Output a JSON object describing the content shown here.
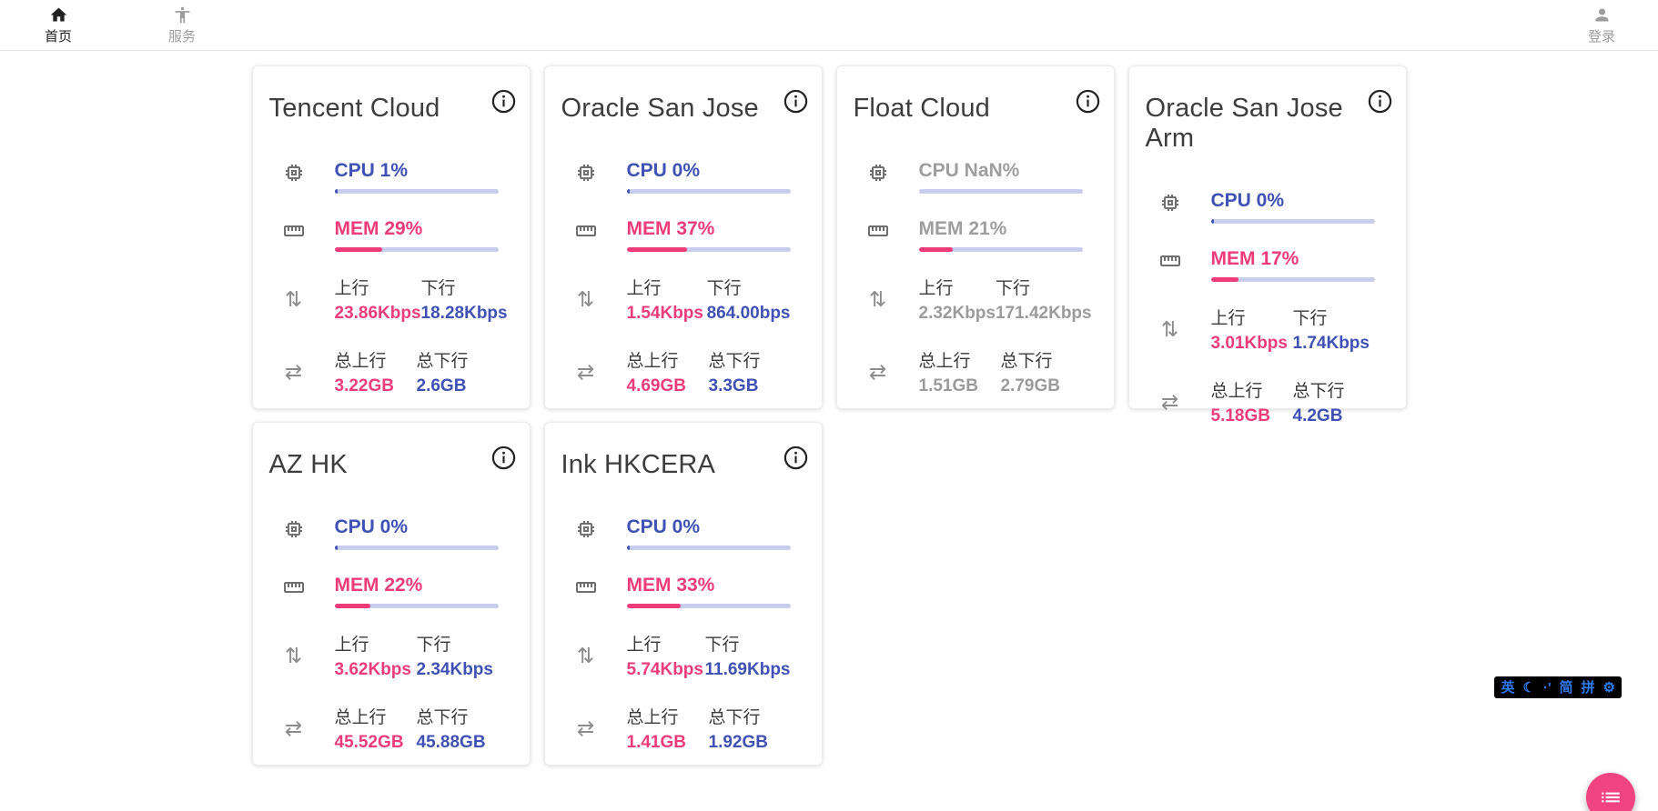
{
  "nav": {
    "home": {
      "label": "首页"
    },
    "services": {
      "label": "服务"
    },
    "login": {
      "label": "登录"
    }
  },
  "stat_labels": {
    "up": "上行",
    "down": "下行",
    "total_up": "总上行",
    "total_down": "总下行"
  },
  "servers": [
    {
      "name": "Tencent Cloud",
      "cpu_text": "CPU 1%",
      "cpu_pct": 1,
      "mem_text": "MEM 29%",
      "mem_pct": 29,
      "up": "23.86Kbps",
      "down": "18.28Kbps",
      "total_up": "3.22GB",
      "total_down": "2.6GB",
      "offline": false
    },
    {
      "name": "Oracle San Jose",
      "cpu_text": "CPU 0%",
      "cpu_pct": 0,
      "mem_text": "MEM 37%",
      "mem_pct": 37,
      "up": "1.54Kbps",
      "down": "864.00bps",
      "total_up": "4.69GB",
      "total_down": "3.3GB",
      "offline": false
    },
    {
      "name": "Float Cloud",
      "cpu_text": "CPU NaN%",
      "cpu_pct": 0,
      "mem_text": "MEM 21%",
      "mem_pct": 21,
      "up": "2.32Kbps",
      "down": "171.42Kbps",
      "total_up": "1.51GB",
      "total_down": "2.79GB",
      "offline": true
    },
    {
      "name": "Oracle San Jose Arm",
      "cpu_text": "CPU 0%",
      "cpu_pct": 0,
      "mem_text": "MEM 17%",
      "mem_pct": 17,
      "up": "3.01Kbps",
      "down": "1.74Kbps",
      "total_up": "5.18GB",
      "total_down": "4.2GB",
      "offline": false
    },
    {
      "name": "AZ HK",
      "cpu_text": "CPU 0%",
      "cpu_pct": 0,
      "mem_text": "MEM 22%",
      "mem_pct": 22,
      "up": "3.62Kbps",
      "down": "2.34Kbps",
      "total_up": "45.52GB",
      "total_down": "45.88GB",
      "offline": false
    },
    {
      "name": "Ink HKCERA",
      "cpu_text": "CPU 0%",
      "cpu_pct": 0,
      "mem_text": "MEM 33%",
      "mem_pct": 33,
      "up": "5.74Kbps",
      "down": "11.69Kbps",
      "total_up": "1.41GB",
      "total_down": "1.92GB",
      "offline": false
    }
  ],
  "ime": {
    "lang": "英",
    "moon_icon": "☾",
    "punct": "·'",
    "simplified": "简",
    "pinyin": "拼",
    "gear_icon": "⚙"
  },
  "colors": {
    "cpu_blue": "#3f51b5",
    "mem_pink": "#ee3c78",
    "track": "#c9cdec",
    "muted": "#9e9e9e",
    "fab_pink": "#f0437f",
    "ime_blue": "#2f7bf5"
  }
}
